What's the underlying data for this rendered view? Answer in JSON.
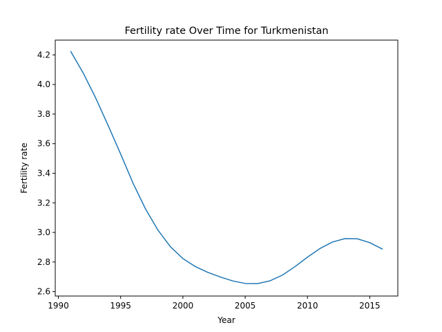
{
  "chart_data": {
    "type": "line",
    "title": "Fertility rate Over Time for Turkmenistan",
    "xlabel": "Year",
    "ylabel": "Fertility rate",
    "xlim": [
      1989.75,
      2017.25
    ],
    "ylim": [
      2.57,
      4.3
    ],
    "xticks": [
      1990,
      1995,
      2000,
      2005,
      2010,
      2015
    ],
    "yticks": [
      2.6,
      2.8,
      3.0,
      3.2,
      3.4,
      3.6,
      3.8,
      4.0,
      4.2
    ],
    "ytick_labels": [
      "2.6",
      "2.8",
      "3.0",
      "3.2",
      "3.4",
      "3.6",
      "3.8",
      "4.0",
      "4.2"
    ],
    "grid": false,
    "series": [
      {
        "color": "#1f77b4",
        "x": [
          1991,
          1992,
          1993,
          1994,
          1995,
          1996,
          1997,
          1998,
          1999,
          2000,
          2001,
          2002,
          2003,
          2004,
          2005,
          2006,
          2007,
          2008,
          2009,
          2010,
          2011,
          2012,
          2013,
          2014,
          2015,
          2016
        ],
        "y": [
          4.222,
          4.077,
          3.908,
          3.722,
          3.53,
          3.332,
          3.158,
          3.015,
          2.903,
          2.823,
          2.769,
          2.73,
          2.699,
          2.672,
          2.655,
          2.654,
          2.673,
          2.712,
          2.769,
          2.833,
          2.891,
          2.935,
          2.958,
          2.957,
          2.931,
          2.888
        ]
      }
    ]
  }
}
